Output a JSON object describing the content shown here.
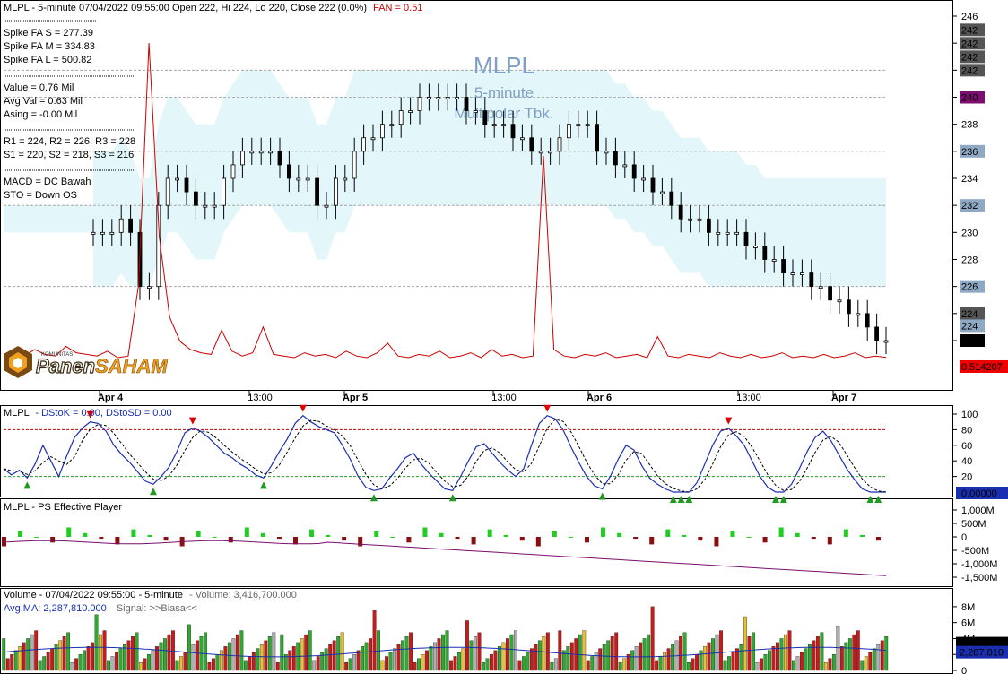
{
  "header": {
    "symbol": "MLPL",
    "info": "- 5-minute 07/04/2022 09:55:00 Open 222, Hi 224, Lo 220, Close 222 (0.0%)",
    "fan": "FAN = 0.51"
  },
  "watermark": {
    "symbol": "MLPL",
    "interval": "5-minute",
    "company": "Multipolar Tbk."
  },
  "logo": {
    "top": "KOMUNITAS",
    "left": "Panen",
    "right": "SAHAM"
  },
  "info_panel": [
    {
      "text": "Spike FA S = 277.39",
      "color": "#000000"
    },
    {
      "text": "Spike FA M = 334.83",
      "color": "#000000"
    },
    {
      "text": "Spike FA L = 500.82",
      "color": "#000000"
    },
    {
      "text": "Value = 0.76 Mil",
      "color": "#000000"
    },
    {
      "text": "Avg Val = 0.63 Mil",
      "color": "#000000"
    },
    {
      "text": "Asing = -0.00 Mil",
      "color": "#cc0000"
    },
    {
      "text": "R1 = 224, R2 = 226, R3 = 228",
      "color": "#000000"
    },
    {
      "text": "S1 = 220, S2 = 218, S3 = 216",
      "color": "#000000"
    },
    {
      "text": "MACD = DC Bawah",
      "color": "#000000"
    },
    {
      "text": "STO = Down OS",
      "color": "#000000"
    }
  ],
  "price_axis": {
    "ticks": [
      "246",
      "244",
      "242",
      "240",
      "238",
      "236",
      "234",
      "232",
      "230",
      "228",
      "226",
      "224",
      "222"
    ],
    "markers": [
      {
        "label": "242",
        "color": "#555555",
        "value": 242
      },
      {
        "label": "242",
        "color": "#555555",
        "value": 242
      },
      {
        "label": "242",
        "color": "#555555",
        "value": 242
      },
      {
        "label": "242",
        "color": "#555555",
        "value": 242
      },
      {
        "label": "240",
        "color": "#7a0f6e",
        "value": 240
      },
      {
        "label": "236",
        "color": "#8fa9c4",
        "value": 236
      },
      {
        "label": "232",
        "color": "#8fa9c4",
        "value": 232
      },
      {
        "label": "226",
        "color": "#8fa9c4",
        "value": 226
      },
      {
        "label": "224",
        "color": "#555555",
        "value": 224
      },
      {
        "label": "224",
        "color": "#8fa9c4",
        "value": 223.1
      },
      {
        "label": "222",
        "color": "#000000",
        "value": 222
      },
      {
        "label": "0.514207",
        "color": "#ee0000",
        "value": 220
      }
    ]
  },
  "time_axis": {
    "labels": [
      {
        "text": "Apr 4",
        "bold": true
      },
      {
        "text": "13:00",
        "bold": false
      },
      {
        "text": "Apr 5",
        "bold": true
      },
      {
        "text": "13:00",
        "bold": false
      },
      {
        "text": "Apr 6",
        "bold": true
      },
      {
        "text": "13:00",
        "bold": false
      },
      {
        "text": "Apr 7",
        "bold": true
      }
    ]
  },
  "stoch_panel": {
    "symbol": "MLPL",
    "title": "- DStoK = 0.00, DStoSD = 0.00",
    "ticks": [
      "100",
      "80",
      "60",
      "40",
      "20"
    ],
    "current": "0.00000"
  },
  "ps_panel": {
    "title": "MLPL - PS Effective Player",
    "ticks": [
      "1,000M",
      "500M",
      "0",
      "-500M",
      "-1,000M",
      "-1,500M"
    ]
  },
  "volume_panel": {
    "title": "Volume - 07/04/2022 09:55:00 - 5-minute",
    "volume_text": "- Volume: 3,416,700.000",
    "avg_text": "Avg.MA: 2,287,810.000",
    "signal_text": "Signal: >>Biasa<<",
    "ticks": [
      "8M",
      "6M",
      "4M",
      "2M",
      "0"
    ],
    "current_volume": "3,416,700",
    "current_avg": "2,287,810"
  },
  "colors": {
    "cloud": "#e3f7fb",
    "fan_line": "#cc0000",
    "stoch_k": "#1a2fb0",
    "ps_line": "#7a0f6e",
    "volume_up": "#2eaa2e",
    "volume_down": "#cc1a1a",
    "volume_spike": "#e8c030",
    "volume_neutral": "#b0b0b0"
  },
  "chart_data": [
    {
      "type": "candlestick",
      "title": "MLPL - 5-minute",
      "ylim": [
        220,
        246.5
      ],
      "resistance_levels": [
        224,
        226,
        228
      ],
      "support_levels": [
        220,
        218,
        216
      ],
      "last": {
        "open": 222,
        "high": 224,
        "low": 220,
        "close": 222
      },
      "close_series": [
        230,
        230,
        230,
        231,
        230,
        226,
        226,
        232,
        234,
        234,
        233,
        232,
        232,
        232,
        234,
        235,
        236,
        236,
        236,
        236,
        235,
        234,
        234,
        234,
        232,
        232,
        234,
        234,
        236,
        237,
        237,
        238,
        238,
        239,
        239,
        240,
        240,
        240,
        240,
        240,
        239,
        239,
        238,
        238,
        238,
        237,
        237,
        236,
        236,
        236,
        237,
        238,
        238,
        238,
        236,
        236,
        235,
        235,
        234,
        234,
        233,
        233,
        232,
        231,
        231,
        231,
        230,
        230,
        230,
        230,
        229,
        229,
        228,
        228,
        227,
        227,
        227,
        226,
        226,
        225,
        225,
        224,
        224,
        223,
        222,
        222
      ],
      "fan_line": [
        0.6,
        0.5,
        0.6,
        1.0,
        0.7,
        0.6,
        1.2,
        0.8,
        0.7,
        0.6,
        0.9,
        0.5,
        0.6,
        5.0,
        20.0,
        8.0,
        3.0,
        1.5,
        1.0,
        0.8,
        0.7,
        2.2,
        0.9,
        0.6,
        0.8,
        2.4,
        0.7,
        0.6,
        0.5,
        0.8,
        0.6,
        0.7,
        0.5,
        0.9,
        0.6,
        0.5,
        0.8,
        1.4,
        0.6,
        0.5,
        0.7,
        0.6,
        0.9,
        0.5,
        0.6,
        0.8,
        0.5,
        1.0,
        0.6,
        0.7,
        0.5,
        0.6,
        13.0,
        1.0,
        0.6,
        0.5,
        0.7,
        0.6,
        0.8,
        0.5,
        0.6,
        0.7,
        0.5,
        1.8,
        0.6,
        0.5,
        0.7,
        0.6,
        0.5,
        0.8,
        0.6,
        0.5,
        0.7,
        0.5,
        0.6,
        0.8,
        0.5,
        0.6,
        0.5,
        0.7,
        0.5,
        0.6,
        0.8,
        0.5,
        0.6,
        0.51
      ]
    },
    {
      "type": "line",
      "title": "MLPL - DStoK = 0.00, DStoSD = 0.00",
      "ylim": [
        0,
        100
      ],
      "dstok": [
        30,
        22,
        28,
        18,
        36,
        60,
        40,
        20,
        46,
        70,
        82,
        90,
        88,
        78,
        60,
        48,
        38,
        26,
        14,
        10,
        20,
        32,
        52,
        76,
        82,
        78,
        70,
        60,
        50,
        44,
        36,
        30,
        22,
        18,
        34,
        52,
        68,
        88,
        98,
        90,
        84,
        80,
        76,
        60,
        42,
        20,
        6,
        2,
        4,
        18,
        30,
        44,
        50,
        36,
        24,
        14,
        4,
        2,
        20,
        40,
        58,
        62,
        50,
        38,
        28,
        20,
        30,
        60,
        88,
        98,
        94,
        80,
        58,
        38,
        20,
        8,
        4,
        20,
        42,
        60,
        54,
        34,
        18,
        10,
        4,
        0,
        0,
        0,
        12,
        36,
        60,
        78,
        82,
        72,
        60,
        40,
        20,
        6,
        0,
        0,
        10,
        30,
        52,
        70,
        78,
        66,
        48,
        30,
        16,
        4,
        0,
        0,
        0
      ],
      "overbought": 80,
      "oversold": 20
    },
    {
      "type": "bar",
      "title": "MLPL - PS Effective Player",
      "ylim": [
        -1700,
        1100
      ]
    },
    {
      "type": "bar",
      "title": "Volume - 07/04/2022 09:55:00 - 5-minute",
      "ylim": [
        0,
        9
      ],
      "unit": "M",
      "last_volume": 3416700,
      "average": 2287810
    }
  ]
}
